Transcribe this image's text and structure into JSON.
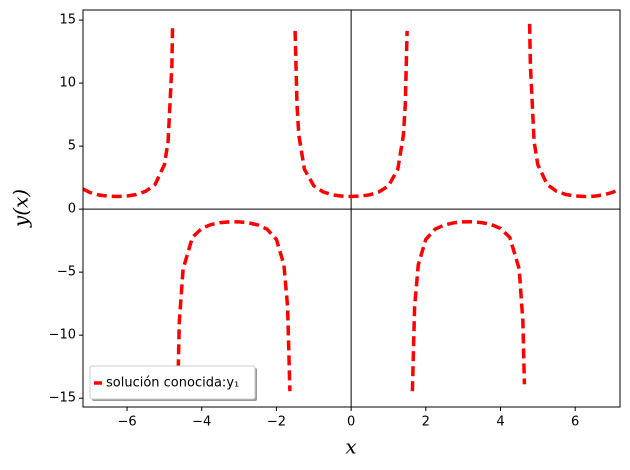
{
  "chart_data": {
    "type": "line",
    "x_label": "x",
    "y_label": "y(x)",
    "xlim": [
      -7.18,
      7.2
    ],
    "ylim": [
      -15.7,
      15.8
    ],
    "xticks": [
      {
        "value": -6,
        "label": "−6"
      },
      {
        "value": -4,
        "label": "−4"
      },
      {
        "value": -2,
        "label": "−2"
      },
      0,
      2,
      4,
      6
    ],
    "yticks": [
      {
        "value": -15,
        "label": "−15"
      },
      {
        "value": -10,
        "label": "−10"
      },
      {
        "value": -5,
        "label": "−5"
      },
      0,
      5,
      10,
      15
    ],
    "legend": "lower left",
    "series": [
      {
        "name": "solución conocida:y₁",
        "color": "#ff0000",
        "x": [
          -7.18,
          -7,
          -6.75,
          -6.5,
          -6.25,
          -6,
          -5.75,
          -5.5,
          -5.25,
          -5,
          -4.9,
          -4.8,
          -4.78,
          null,
          -4.64,
          -4.6,
          -4.5,
          -4.25,
          -4,
          -3.75,
          -3.5,
          -3.25,
          -3,
          -2.75,
          -2.5,
          -2.25,
          -2,
          -1.8,
          -1.7,
          -1.64,
          null,
          -1.5,
          -1.45,
          -1.4,
          -1.25,
          -1,
          -0.75,
          -0.5,
          -0.25,
          0,
          0.25,
          0.5,
          0.75,
          1,
          1.25,
          1.4,
          1.45,
          1.5,
          null,
          1.64,
          1.7,
          1.8,
          2,
          2.25,
          2.5,
          2.75,
          3,
          3.25,
          3.5,
          3.75,
          4,
          4.25,
          4.5,
          4.6,
          4.64,
          null,
          4.78,
          4.8,
          4.9,
          5,
          5.25,
          5.5,
          5.75,
          6,
          6.25,
          6.5,
          6.75,
          7,
          7.18
        ],
        "values": [
          1.603,
          1.326,
          1.12,
          1.024,
          1.0,
          1.041,
          1.16,
          1.411,
          1.953,
          3.525,
          5.36,
          11.43,
          14.7,
          null,
          -13.9,
          -8.95,
          -4.75,
          -2.243,
          -1.53,
          -1.219,
          -1.068,
          -1.006,
          -1.01,
          -1.082,
          -1.248,
          -1.592,
          -2.403,
          -4.4,
          -7.76,
          -14.45,
          null,
          14.14,
          8.3,
          5.88,
          3.17,
          1.851,
          1.367,
          1.139,
          1.032,
          1,
          1.032,
          1.139,
          1.367,
          1.851,
          3.17,
          5.88,
          8.3,
          14.14,
          null,
          -14.45,
          -7.76,
          -4.4,
          -2.403,
          -1.592,
          -1.248,
          -1.082,
          -1.01,
          -1.006,
          -1.068,
          -1.219,
          -1.53,
          -2.243,
          -4.75,
          -8.95,
          -13.9,
          null,
          14.7,
          11.43,
          5.36,
          3.525,
          1.953,
          1.411,
          1.16,
          1.041,
          1.0,
          1.024,
          1.12,
          1.326,
          1.603
        ]
      }
    ]
  }
}
